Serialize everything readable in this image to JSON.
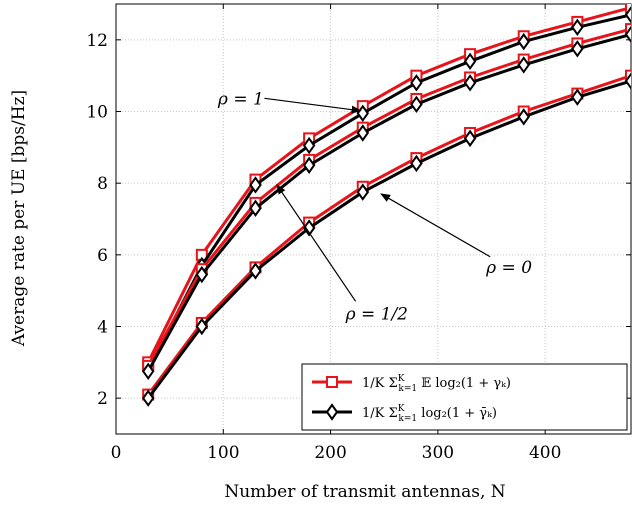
{
  "chart_data": {
    "type": "line",
    "xlabel": "Number of transmit antennas, N",
    "ylabel": "Average rate per UE [bps/Hz]",
    "xlim": [
      0,
      480
    ],
    "ylim": [
      1,
      13
    ],
    "xticks": [
      0,
      100,
      200,
      300,
      400
    ],
    "yticks": [
      2,
      4,
      6,
      8,
      10,
      12
    ],
    "grid": true,
    "legend_position": "bottom-right",
    "x": [
      30,
      80,
      130,
      180,
      230,
      280,
      330,
      380,
      430,
      480
    ],
    "series": [
      {
        "name": "1/K Σ_{k=1}^K E log2(1 + γ_k)",
        "group": "ρ = 1",
        "color": "#e8141a",
        "marker": "square",
        "values": [
          3.0,
          6.0,
          8.1,
          9.25,
          10.15,
          11.0,
          11.6,
          12.1,
          12.5,
          12.9
        ]
      },
      {
        "name": "1/K Σ_{k=1}^K log2(1 + γ̄_k)",
        "group": "ρ = 1",
        "color": "#000000",
        "marker": "diamond",
        "values": [
          2.8,
          5.7,
          7.95,
          9.05,
          9.95,
          10.8,
          11.4,
          11.95,
          12.35,
          12.7
        ]
      },
      {
        "name": "1/K Σ_{k=1}^K E log2(1 + γ_k)",
        "group": "ρ = 1/2",
        "color": "#e8141a",
        "marker": "square",
        "values": [
          2.9,
          5.6,
          7.45,
          8.65,
          9.55,
          10.35,
          10.95,
          11.45,
          11.9,
          12.3
        ]
      },
      {
        "name": "1/K Σ_{k=1}^K log2(1 + γ̄_k)",
        "group": "ρ = 1/2",
        "color": "#000000",
        "marker": "diamond",
        "values": [
          2.75,
          5.45,
          7.3,
          8.5,
          9.4,
          10.2,
          10.8,
          11.3,
          11.75,
          12.15
        ]
      },
      {
        "name": "1/K Σ_{k=1}^K E log2(1 + γ_k)",
        "group": "ρ = 0",
        "color": "#e8141a",
        "marker": "square",
        "values": [
          2.1,
          4.1,
          5.65,
          6.9,
          7.9,
          8.7,
          9.4,
          10.0,
          10.5,
          11.0
        ]
      },
      {
        "name": "1/K Σ_{k=1}^K log2(1 + γ̄_k)",
        "group": "ρ = 0",
        "color": "#000000",
        "marker": "diamond",
        "values": [
          2.0,
          4.0,
          5.55,
          6.75,
          7.75,
          8.55,
          9.25,
          9.85,
          10.4,
          10.85
        ]
      }
    ],
    "annotations": [
      {
        "text": "ρ = 1",
        "x": 95,
        "y": 10.2,
        "arrow_to": [
          228,
          10.02
        ]
      },
      {
        "text": "ρ = 1/2",
        "x": 214,
        "y": 4.2,
        "arrow_to": [
          150,
          7.95
        ]
      },
      {
        "text": "ρ = 0",
        "x": 345,
        "y": 5.5,
        "arrow_to": [
          247,
          7.7
        ]
      }
    ],
    "legend": [
      {
        "label_main": "1/K Σ",
        "label_sup": "K",
        "label_sub": "k=1",
        "label_rest": " 𝔼 log₂(1 + γₖ)",
        "color": "#e8141a",
        "marker": "square"
      },
      {
        "label_main": "1/K Σ",
        "label_sup": "K",
        "label_sub": "k=1",
        "label_rest": " log₂(1 + γ̄ₖ)",
        "color": "#000000",
        "marker": "diamond"
      }
    ]
  }
}
